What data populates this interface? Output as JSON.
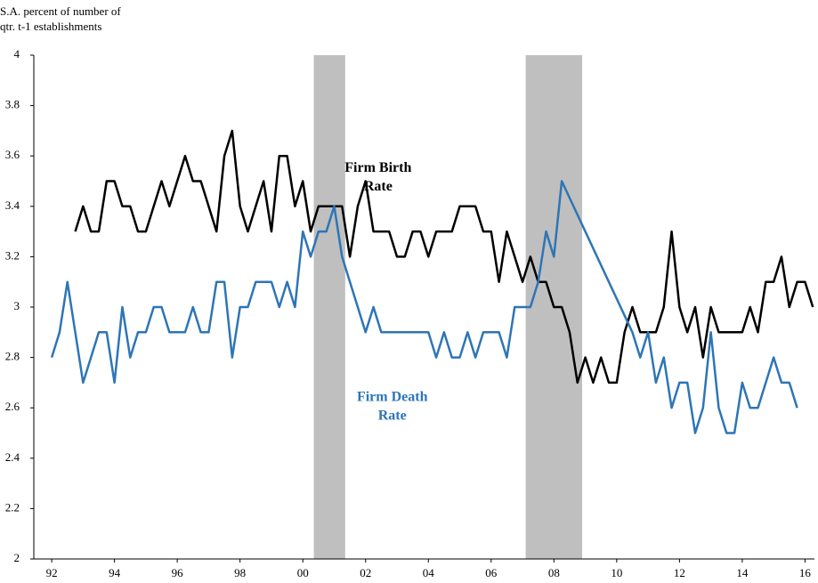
{
  "chart_data": {
    "type": "line",
    "y_axis_label": [
      "S.A. percent of number of",
      "qtr. t-1 establishments"
    ],
    "xlim": [
      1991.43,
      2016.3
    ],
    "xticks": [
      {
        "value": 1992,
        "label": "92"
      },
      {
        "value": 1994,
        "label": "94"
      },
      {
        "value": 1996,
        "label": "96"
      },
      {
        "value": 1998,
        "label": "98"
      },
      {
        "value": 2000,
        "label": "00"
      },
      {
        "value": 2002,
        "label": "02"
      },
      {
        "value": 2004,
        "label": "04"
      },
      {
        "value": 2006,
        "label": "06"
      },
      {
        "value": 2008,
        "label": "08"
      },
      {
        "value": 2010,
        "label": "10"
      },
      {
        "value": 2012,
        "label": "12"
      },
      {
        "value": 2014,
        "label": "14"
      },
      {
        "value": 2016,
        "label": "16"
      }
    ],
    "ylim": [
      2,
      4
    ],
    "yticks": [
      2,
      {
        "value": 2.2,
        "label": "2.2"
      },
      {
        "value": 2.4,
        "label": "2.4"
      },
      {
        "value": 2.6,
        "label": "2.6"
      },
      {
        "value": 2.8,
        "label": "2.8"
      },
      3,
      {
        "value": 3.2,
        "label": "3.2"
      },
      {
        "value": 3.4,
        "label": "3.4"
      },
      {
        "value": 3.6,
        "label": "3.6"
      },
      {
        "value": 3.8,
        "label": "3.8"
      },
      4
    ],
    "shaded_ranges": [
      [
        2000.35,
        2001.35
      ],
      [
        2007.1,
        2008.9
      ]
    ],
    "shade_color": "#bfbfbf",
    "series": [
      {
        "name": "Firm Birth Rate",
        "color": "#000000",
        "x": [
          1992.75,
          1993,
          1993.25,
          1993.5,
          1993.75,
          1994,
          1994.25,
          1994.5,
          1994.75,
          1995,
          1995.25,
          1995.5,
          1995.75,
          1996,
          1996.25,
          1996.5,
          1996.75,
          1997,
          1997.25,
          1997.5,
          1997.75,
          1998,
          1998.25,
          1998.5,
          1998.75,
          1999,
          1999.25,
          1999.5,
          1999.75,
          2000,
          2000.25,
          2000.5,
          2000.75,
          2001,
          2001.25,
          2001.5,
          2001.75,
          2002,
          2002.25,
          2002.5,
          2002.75,
          2003,
          2003.25,
          2003.5,
          2003.75,
          2004,
          2004.25,
          2004.5,
          2004.75,
          2005,
          2005.25,
          2005.5,
          2005.75,
          2006,
          2006.25,
          2006.5,
          2006.75,
          2007,
          2007.25,
          2007.5,
          2007.75,
          2008,
          2008.25,
          2008.5,
          2008.75,
          2009,
          2009.25,
          2009.5,
          2009.75,
          2010,
          2010.25,
          2010.5,
          2010.75,
          2011,
          2011.25,
          2011.5,
          2011.75,
          2012,
          2012.25,
          2012.5,
          2012.75,
          2013,
          2013.25,
          2013.5,
          2013.75,
          2014,
          2014.25,
          2014.5,
          2014.75,
          2015,
          2015.25,
          2015.5,
          2015.75,
          2016,
          2016.25
        ],
        "values": [
          3.3,
          3.4,
          3.3,
          3.3,
          3.5,
          3.5,
          3.4,
          3.4,
          3.3,
          3.3,
          3.4,
          3.5,
          3.4,
          3.5,
          3.6,
          3.5,
          3.5,
          3.4,
          3.3,
          3.6,
          3.7,
          3.4,
          3.3,
          3.4,
          3.5,
          3.3,
          3.6,
          3.6,
          3.4,
          3.5,
          3.3,
          3.4,
          3.4,
          3.4,
          3.4,
          3.2,
          3.4,
          3.5,
          3.3,
          3.3,
          3.3,
          3.2,
          3.2,
          3.3,
          3.3,
          3.2,
          3.3,
          3.3,
          3.3,
          3.4,
          3.4,
          3.4,
          3.3,
          3.3,
          3.1,
          3.3,
          3.2,
          3.1,
          3.2,
          3.1,
          3.1,
          3.0,
          3.0,
          2.9,
          2.7,
          2.8,
          2.7,
          2.8,
          2.7,
          2.7,
          2.9,
          3.0,
          2.9,
          2.9,
          2.9,
          3.0,
          3.3,
          3.0,
          2.9,
          3.0,
          2.8,
          3.0,
          2.9,
          2.9,
          2.9,
          2.9,
          3.0,
          2.9,
          3.1,
          3.1,
          3.2,
          3.0,
          3.1,
          3.1,
          3.0
        ]
      },
      {
        "name": "Firm Death Rate",
        "color": "#2e75b6",
        "x": [
          1992,
          1992.25,
          1992.5,
          1992.75,
          1993,
          1993.25,
          1993.5,
          1993.75,
          1994,
          1994.25,
          1994.5,
          1994.75,
          1995,
          1995.25,
          1995.5,
          1995.75,
          1996,
          1996.25,
          1996.5,
          1996.75,
          1997,
          1997.25,
          1997.5,
          1997.75,
          1998,
          1998.25,
          1998.5,
          1998.75,
          1999,
          1999.25,
          1999.5,
          1999.75,
          2000,
          2000.25,
          2000.5,
          2000.75,
          2001,
          2001.25,
          2002,
          2002.25,
          2002.5,
          2002.75,
          2003,
          2003.25,
          2003.5,
          2003.75,
          2004,
          2004.25,
          2004.5,
          2004.75,
          2005,
          2005.25,
          2005.5,
          2005.75,
          2006,
          2006.25,
          2006.5,
          2006.75,
          2007,
          2007.25,
          2007.5,
          2007.75,
          2008,
          2008.25,
          2010.5,
          2010.75,
          2011,
          2011.25,
          2011.5,
          2011.75,
          2012,
          2012.25,
          2012.5,
          2012.75,
          2013,
          2013.25,
          2013.5,
          2013.75,
          2014,
          2014.25,
          2014.5,
          2014.75,
          2015,
          2015.25,
          2015.5,
          2015.75
        ],
        "values": [
          2.8,
          2.9,
          3.1,
          2.9,
          2.7,
          2.8,
          2.9,
          2.9,
          2.7,
          3.0,
          2.8,
          2.9,
          2.9,
          3.0,
          3.0,
          2.9,
          2.9,
          2.9,
          3.0,
          2.9,
          2.9,
          3.1,
          3.1,
          2.8,
          3.0,
          3.0,
          3.1,
          3.1,
          3.1,
          3.0,
          3.1,
          3.0,
          3.3,
          3.2,
          3.3,
          3.3,
          3.4,
          3.2,
          2.9,
          3.0,
          2.9,
          2.9,
          2.9,
          2.9,
          2.9,
          2.9,
          2.9,
          2.8,
          2.9,
          2.8,
          2.8,
          2.9,
          2.8,
          2.9,
          2.9,
          2.9,
          2.8,
          3.0,
          3.0,
          3.0,
          3.1,
          3.3,
          3.2,
          3.5,
          2.9,
          2.8,
          2.9,
          2.7,
          2.8,
          2.6,
          2.7,
          2.7,
          2.5,
          2.6,
          2.9,
          2.6,
          2.5,
          2.5,
          2.7,
          2.6,
          2.6,
          2.7,
          2.8,
          2.7,
          2.7,
          2.6
        ]
      }
    ],
    "annotations": [
      {
        "lines": [
          "Firm Birth",
          "Rate"
        ],
        "color": "#000000",
        "x": 2002.4,
        "y": 3.55
      },
      {
        "lines": [
          "Firm Death",
          "Rate"
        ],
        "color": "#2e75b6",
        "x": 2002.85,
        "y": 2.64
      }
    ]
  }
}
